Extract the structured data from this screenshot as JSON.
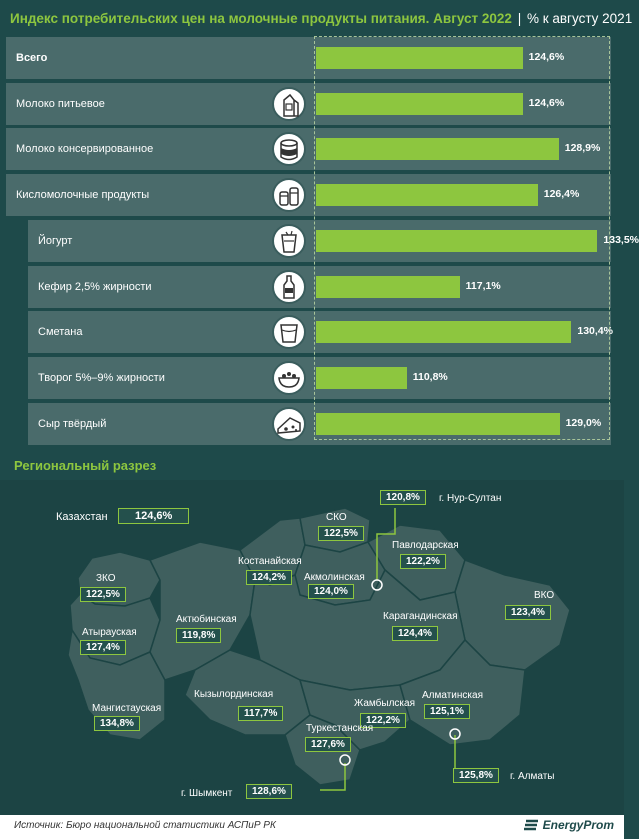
{
  "title": {
    "main": "Индекс потребительских цен на молочные продукты питания. Август 2022",
    "separator": "|",
    "unit": "% к августу 2021"
  },
  "chart_data": {
    "type": "bar",
    "orientation": "horizontal",
    "categories": [
      "Всего",
      "Молоко питьевое",
      "Молоко консервированное",
      "Кисломолочные продукты",
      "Йогурт",
      "Кефир 2,5% жирности",
      "Сметана",
      "Творог 5%–9% жирности",
      "Сыр твёрдый"
    ],
    "values": [
      124.6,
      124.6,
      128.9,
      126.4,
      133.5,
      117.1,
      130.4,
      110.8,
      129.0
    ],
    "value_labels": [
      "124,6%",
      "124,6%",
      "128,9%",
      "126,4%",
      "133,5%",
      "117,1%",
      "130,4%",
      "110,8%",
      "129,0%"
    ],
    "xlim": [
      100,
      135
    ],
    "icons": [
      "",
      "milk-carton-icon",
      "condensed-milk-can-icon",
      "dairy-jars-icon",
      "yogurt-cup-icon",
      "kefir-bottle-icon",
      "sour-cream-cup-icon",
      "cottage-cheese-bowl-icon",
      "cheese-icon"
    ],
    "colors": {
      "bar": "#8dc63f",
      "row": "#4a6b6b",
      "background": "#1e4a4a"
    }
  },
  "region": {
    "title": "Региональный разрез",
    "country_label": "Казахстан",
    "country_value": "124,6%",
    "items": [
      {
        "name": "СКО",
        "value": "122,5%"
      },
      {
        "name": "г. Нур-Султан",
        "value": "120,8%"
      },
      {
        "name": "Павлодарская",
        "value": "122,2%"
      },
      {
        "name": "Костанайская",
        "value": "124,2%"
      },
      {
        "name": "Акмолинская",
        "value": "124,0%"
      },
      {
        "name": "ЗКО",
        "value": "122,5%"
      },
      {
        "name": "ВКО",
        "value": "123,4%"
      },
      {
        "name": "Актюбинская",
        "value": "119,8%"
      },
      {
        "name": "Карагандинская",
        "value": "124,4%"
      },
      {
        "name": "Атырауская",
        "value": "127,4%"
      },
      {
        "name": "Кызылординская",
        "value": "117,7%"
      },
      {
        "name": "Алматинская",
        "value": "125,1%"
      },
      {
        "name": "Мангистауская",
        "value": "134,8%"
      },
      {
        "name": "Жамбылская",
        "value": "122,2%"
      },
      {
        "name": "Туркестанская",
        "value": "127,6%"
      },
      {
        "name": "г. Алматы",
        "value": "125,8%"
      },
      {
        "name": "г. Шымкент",
        "value": "128,6%"
      }
    ]
  },
  "footer": {
    "source": "Источник: Бюро национальной статистики АСПиР РК",
    "logo": "EnergyProm"
  }
}
